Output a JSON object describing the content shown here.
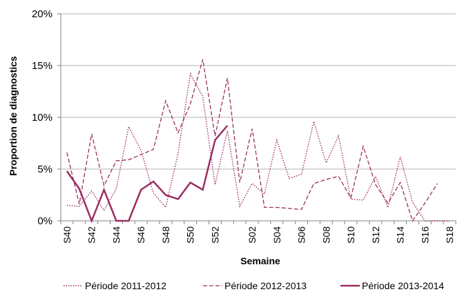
{
  "chart_data": {
    "type": "line",
    "ylabel": "Proportion de diagnostics",
    "xlabel": "Semaine",
    "ylim": [
      0,
      20
    ],
    "yticks": [
      "0%",
      "5%",
      "10%",
      "15%",
      "20%"
    ],
    "ytick_values": [
      0,
      5,
      10,
      15,
      20
    ],
    "grid": "horizontal",
    "legend_position": "bottom",
    "categories": [
      "S40",
      "S41",
      "S42",
      "S43",
      "S44",
      "S45",
      "S46",
      "S47",
      "S48",
      "S49",
      "S50",
      "S51",
      "S52",
      "S53",
      "S01",
      "S02",
      "S03",
      "S04",
      "S05",
      "S06",
      "S07",
      "S08",
      "S09",
      "S10",
      "S11",
      "S12",
      "S13",
      "S14",
      "S15",
      "S16",
      "S17",
      "S18"
    ],
    "x_tick_labels": [
      "S40",
      "S42",
      "S44",
      "S46",
      "S48",
      "S50",
      "S52",
      "S02",
      "S04",
      "S06",
      "S08",
      "S10",
      "S12",
      "S14",
      "S16",
      "S18"
    ],
    "series": [
      {
        "name": "Période 2011-2012",
        "style": "dotted",
        "color": "#9b2d62",
        "values": [
          1.5,
          1.4,
          2.9,
          1.0,
          3.1,
          9.1,
          6.8,
          2.7,
          1.3,
          6.5,
          14.2,
          12.0,
          3.5,
          8.7,
          1.4,
          3.6,
          2.6,
          7.8,
          4.1,
          4.5,
          9.6,
          5.6,
          8.2,
          2.1,
          2.0,
          4.3,
          1.3,
          6.2,
          1.8,
          0,
          0,
          0
        ]
      },
      {
        "name": "Période 2012-2013",
        "style": "dashed",
        "color": "#9b2d62",
        "values": [
          6.6,
          1.6,
          8.4,
          3.4,
          5.8,
          5.9,
          6.4,
          6.9,
          11.6,
          8.5,
          11.3,
          15.6,
          8.2,
          13.8,
          3.7,
          8.9,
          1.3,
          1.3,
          1.2,
          1.1,
          3.6,
          4.0,
          4.3,
          2.2,
          7.2,
          3.5,
          1.7,
          3.7,
          0,
          1.7,
          3.6,
          null
        ]
      },
      {
        "name": "Période 2013-2014",
        "style": "solid",
        "color": "#9b2d62",
        "values": [
          4.8,
          3.1,
          0,
          3.0,
          0,
          0,
          3.0,
          3.8,
          2.5,
          2.1,
          3.7,
          3.0,
          7.8,
          9.2,
          null,
          null,
          null,
          null,
          null,
          null,
          null,
          null,
          null,
          null,
          null,
          null,
          null,
          null,
          null,
          null,
          null,
          null
        ]
      }
    ]
  }
}
